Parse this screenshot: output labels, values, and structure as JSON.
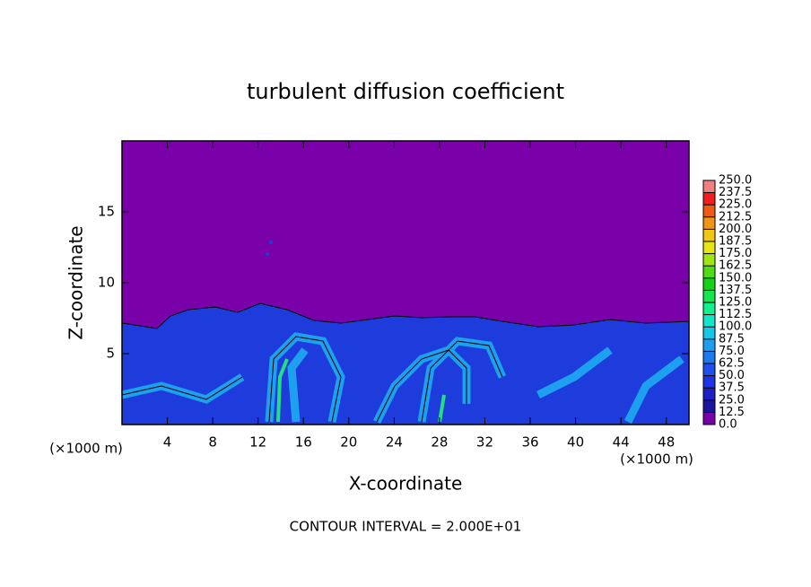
{
  "chart_data": {
    "type": "contour",
    "title": "turbulent diffusion coefficient",
    "xlabel": "X-coordinate",
    "ylabel": "Z-coordinate",
    "x_unit_label": "(×1000 m)",
    "y_unit_label": "(×1000 m)",
    "annotation": "CONTOUR INTERVAL = 2.000E+01",
    "xlim": [
      0,
      50
    ],
    "ylim": [
      0,
      20
    ],
    "xticks": [
      4,
      8,
      12,
      16,
      20,
      24,
      28,
      32,
      36,
      40,
      44,
      48
    ],
    "yticks": [
      5,
      10,
      15
    ],
    "colorbar": {
      "ticks": [
        {
          "value": 0,
          "label": "0.0"
        },
        {
          "value": 12.5,
          "label": "12.5"
        },
        {
          "value": 25,
          "label": "25.0"
        },
        {
          "value": 37.5,
          "label": "37.5"
        },
        {
          "value": 50,
          "label": "50.0"
        },
        {
          "value": 62.5,
          "label": "62.5"
        },
        {
          "value": 75,
          "label": "75.0"
        },
        {
          "value": 87.5,
          "label": "87.5"
        },
        {
          "value": 100,
          "label": "100.0"
        },
        {
          "value": 112.5,
          "label": "112.5"
        },
        {
          "value": 125,
          "label": "125.0"
        },
        {
          "value": 137.5,
          "label": "137.5"
        },
        {
          "value": 150,
          "label": "150.0"
        },
        {
          "value": 162.5,
          "label": "162.5"
        },
        {
          "value": 175,
          "label": "175.0"
        },
        {
          "value": 187.5,
          "label": "187.5"
        },
        {
          "value": 200,
          "label": "200.0"
        },
        {
          "value": 212.5,
          "label": "212.5"
        },
        {
          "value": 225,
          "label": "225.0"
        },
        {
          "value": 237.5,
          "label": "237.5"
        },
        {
          "value": 250,
          "label": "250.0"
        }
      ],
      "colors": [
        "#7a00aa",
        "#1a14a0",
        "#1e1ec8",
        "#1e32e6",
        "#1e50f0",
        "#1e78f0",
        "#1e9ef0",
        "#14c8e6",
        "#14e6c8",
        "#10f08c",
        "#14e650",
        "#14d214",
        "#50dc14",
        "#a0e614",
        "#e6e614",
        "#f0c814",
        "#f09614",
        "#f05a14",
        "#f01e1e",
        "#f08080"
      ]
    }
  }
}
